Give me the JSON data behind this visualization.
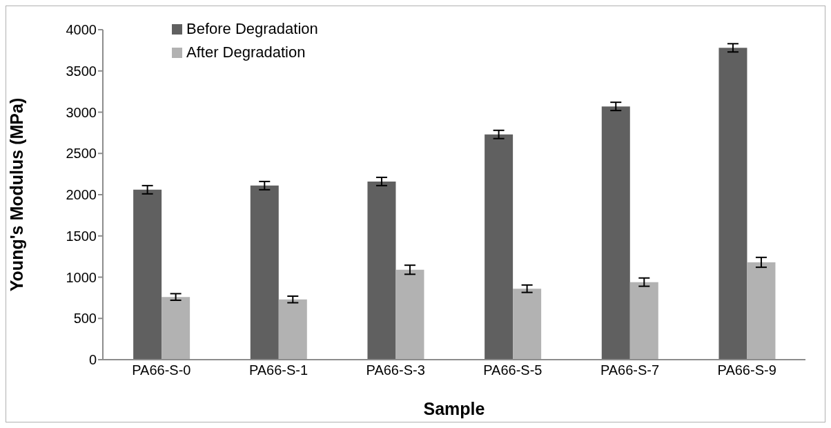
{
  "chart_data": {
    "type": "bar",
    "xlabel": "Sample",
    "ylabel": "Young's Modulus (MPa)",
    "categories": [
      "PA66-S-0",
      "PA66-S-1",
      "PA66-S-3",
      "PA66-S-5",
      "PA66-S-7",
      "PA66-S-9"
    ],
    "series": [
      {
        "name": "Before Degradation",
        "color": "#606060",
        "values": [
          2060,
          2110,
          2160,
          2730,
          3070,
          3780
        ],
        "errors": [
          50,
          50,
          50,
          50,
          50,
          50
        ]
      },
      {
        "name": "After Degradation",
        "color": "#b2b2b2",
        "values": [
          760,
          730,
          1090,
          860,
          940,
          1180
        ],
        "errors": [
          40,
          40,
          55,
          45,
          50,
          60
        ]
      }
    ],
    "ylim": [
      0,
      4000
    ],
    "yticks": [
      0,
      500,
      1000,
      1500,
      2000,
      2500,
      3000,
      3500,
      4000
    ],
    "grid": false,
    "legend": "top left"
  }
}
